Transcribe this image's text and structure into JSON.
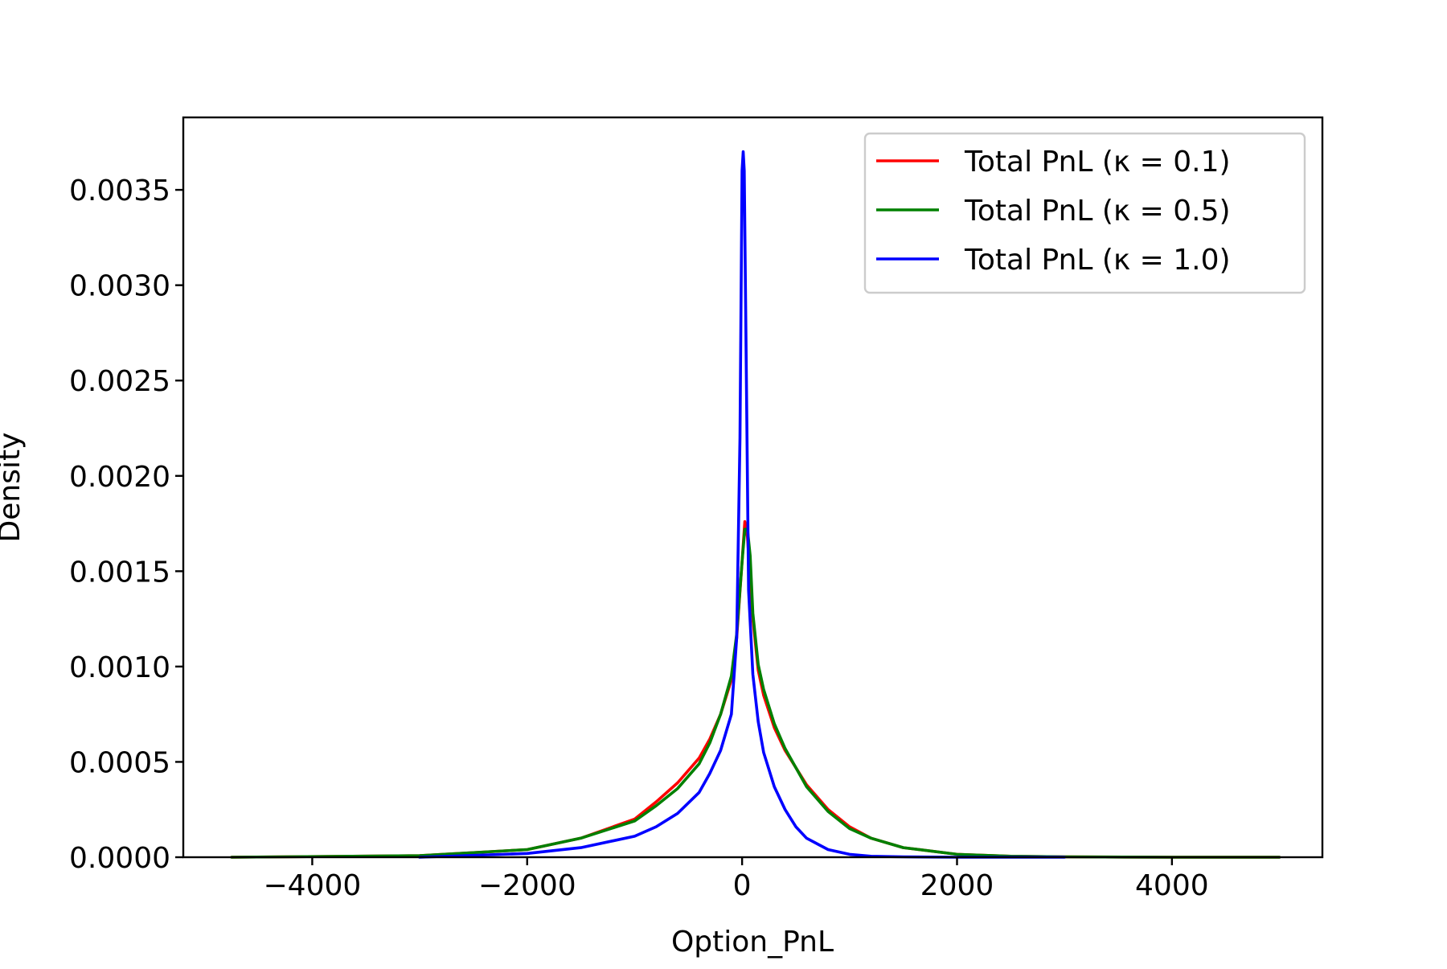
{
  "chart_data": {
    "type": "line",
    "title": "",
    "xlabel": "Option_PnL",
    "ylabel": "Density",
    "xlim": [
      -5200,
      5400
    ],
    "ylim": [
      0,
      0.00388
    ],
    "xticks": [
      -4000,
      -2000,
      0,
      2000,
      4000
    ],
    "xtick_labels": [
      "−4000",
      "−2000",
      "0",
      "2000",
      "4000"
    ],
    "yticks": [
      0,
      0.0005,
      0.001,
      0.0015,
      0.002,
      0.0025,
      0.003,
      0.0035
    ],
    "ytick_labels": [
      "0.0000",
      "0.0005",
      "0.0010",
      "0.0015",
      "0.0020",
      "0.0025",
      "0.0030",
      "0.0035"
    ],
    "grid": false,
    "legend_position": "top-right",
    "series": [
      {
        "name": "Total PnL (κ = 0.1)",
        "color": "#ff0000",
        "x": [
          -4750,
          -3000,
          -2000,
          -1500,
          -1000,
          -800,
          -600,
          -400,
          -300,
          -200,
          -100,
          -50,
          0,
          25,
          50,
          100,
          150,
          200,
          300,
          400,
          500,
          600,
          800,
          1000,
          1200,
          1500,
          2000,
          2500,
          3000,
          4000,
          5000
        ],
        "y": [
          0,
          8e-06,
          4e-05,
          0.0001,
          0.0002,
          0.00029,
          0.00039,
          0.00052,
          0.00062,
          0.00075,
          0.00093,
          0.00115,
          0.00155,
          0.00176,
          0.00168,
          0.00125,
          0.00098,
          0.00085,
          0.00068,
          0.00056,
          0.00047,
          0.00038,
          0.00025,
          0.00016,
          0.0001,
          5e-05,
          1.5e-05,
          5e-06,
          2e-06,
          0,
          0
        ]
      },
      {
        "name": "Total PnL (κ = 0.5)",
        "color": "#008000",
        "x": [
          -4750,
          -3000,
          -2000,
          -1500,
          -1000,
          -800,
          -600,
          -400,
          -300,
          -200,
          -100,
          -50,
          0,
          25,
          50,
          75,
          100,
          150,
          200,
          300,
          400,
          500,
          600,
          800,
          1000,
          1200,
          1500,
          2000,
          2500,
          3000,
          4000,
          5000
        ],
        "y": [
          0,
          8e-06,
          4e-05,
          0.0001,
          0.00019,
          0.00027,
          0.00036,
          0.00049,
          0.0006,
          0.00075,
          0.00095,
          0.00117,
          0.00155,
          0.00172,
          0.00172,
          0.00158,
          0.00128,
          0.00101,
          0.00088,
          0.0007,
          0.00057,
          0.00047,
          0.00037,
          0.00024,
          0.00015,
          0.0001,
          5e-05,
          1.5e-05,
          5e-06,
          2e-06,
          0,
          0
        ]
      },
      {
        "name": "Total PnL (κ = 1.0)",
        "color": "#0000ff",
        "x": [
          -3000,
          -2000,
          -1500,
          -1000,
          -800,
          -600,
          -400,
          -300,
          -200,
          -100,
          -50,
          -20,
          0,
          10,
          20,
          40,
          60,
          100,
          150,
          200,
          300,
          400,
          500,
          600,
          800,
          1000,
          1200,
          1500,
          2000,
          3000
        ],
        "y": [
          0,
          2e-05,
          5e-05,
          0.00011,
          0.00016,
          0.00023,
          0.00034,
          0.00044,
          0.00056,
          0.00075,
          0.00115,
          0.0022,
          0.0036,
          0.0037,
          0.0036,
          0.0025,
          0.0014,
          0.00096,
          0.00071,
          0.00055,
          0.00037,
          0.00025,
          0.00016,
          0.0001,
          4e-05,
          1.5e-05,
          5e-06,
          2e-06,
          0,
          0
        ]
      }
    ]
  }
}
